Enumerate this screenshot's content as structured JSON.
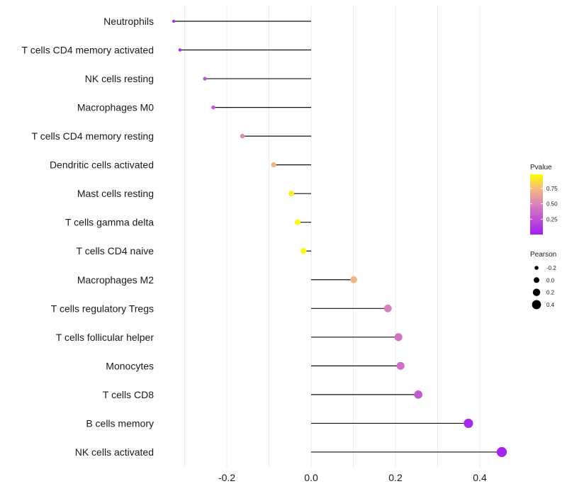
{
  "chart_data": {
    "type": "scatter",
    "subtype": "lollipop",
    "title": "",
    "xlabel": "",
    "ylabel": "",
    "xlim": [
      -0.34,
      0.47
    ],
    "xticks": [
      -0.2,
      0.0,
      0.2,
      0.4
    ],
    "xtick_labels": [
      "-0.2",
      "0.0",
      "0.2",
      "0.4"
    ],
    "minor_gridlines": [
      -0.3,
      -0.1,
      0.1,
      0.3
    ],
    "grid": true,
    "baseline": 0.0,
    "categories": [
      "Neutrophils",
      "T cells CD4 memory activated",
      "NK cells resting",
      "Macrophages M0",
      "T cells CD4 memory resting",
      "Dendritic cells activated",
      "Mast cells resting",
      "T cells gamma delta",
      "T cells CD4 naive",
      "Macrophages M2",
      "T cells regulatory  Tregs ",
      "T cells follicular helper",
      "Monocytes",
      "T cells CD8",
      "B cells memory",
      "NK cells activated"
    ],
    "pearson": [
      -0.326,
      -0.311,
      -0.252,
      -0.232,
      -0.163,
      -0.089,
      -0.047,
      -0.032,
      -0.018,
      0.101,
      0.182,
      0.207,
      0.212,
      0.254,
      0.373,
      0.452
    ],
    "pvalue": [
      0.05,
      0.07,
      0.25,
      0.28,
      0.52,
      0.72,
      0.92,
      0.95,
      0.97,
      0.72,
      0.48,
      0.42,
      0.4,
      0.28,
      0.05,
      0.02
    ],
    "color_legend": {
      "title": "Pvalue",
      "ticks": [
        0.25,
        0.5,
        0.75
      ],
      "tick_labels": [
        "0.25",
        "0.50",
        "0.75"
      ],
      "range": [
        0.0,
        0.98
      ],
      "low_color": "#a020f0",
      "mid_color": "#e08cb0",
      "high_color": "#ffff00"
    },
    "size_legend": {
      "title": "Pearson",
      "values": [
        -0.2,
        0.0,
        0.2,
        0.4
      ],
      "labels": [
        "-0.2",
        "0.0",
        "0.2",
        "0.4"
      ]
    },
    "legend_position": "right"
  }
}
